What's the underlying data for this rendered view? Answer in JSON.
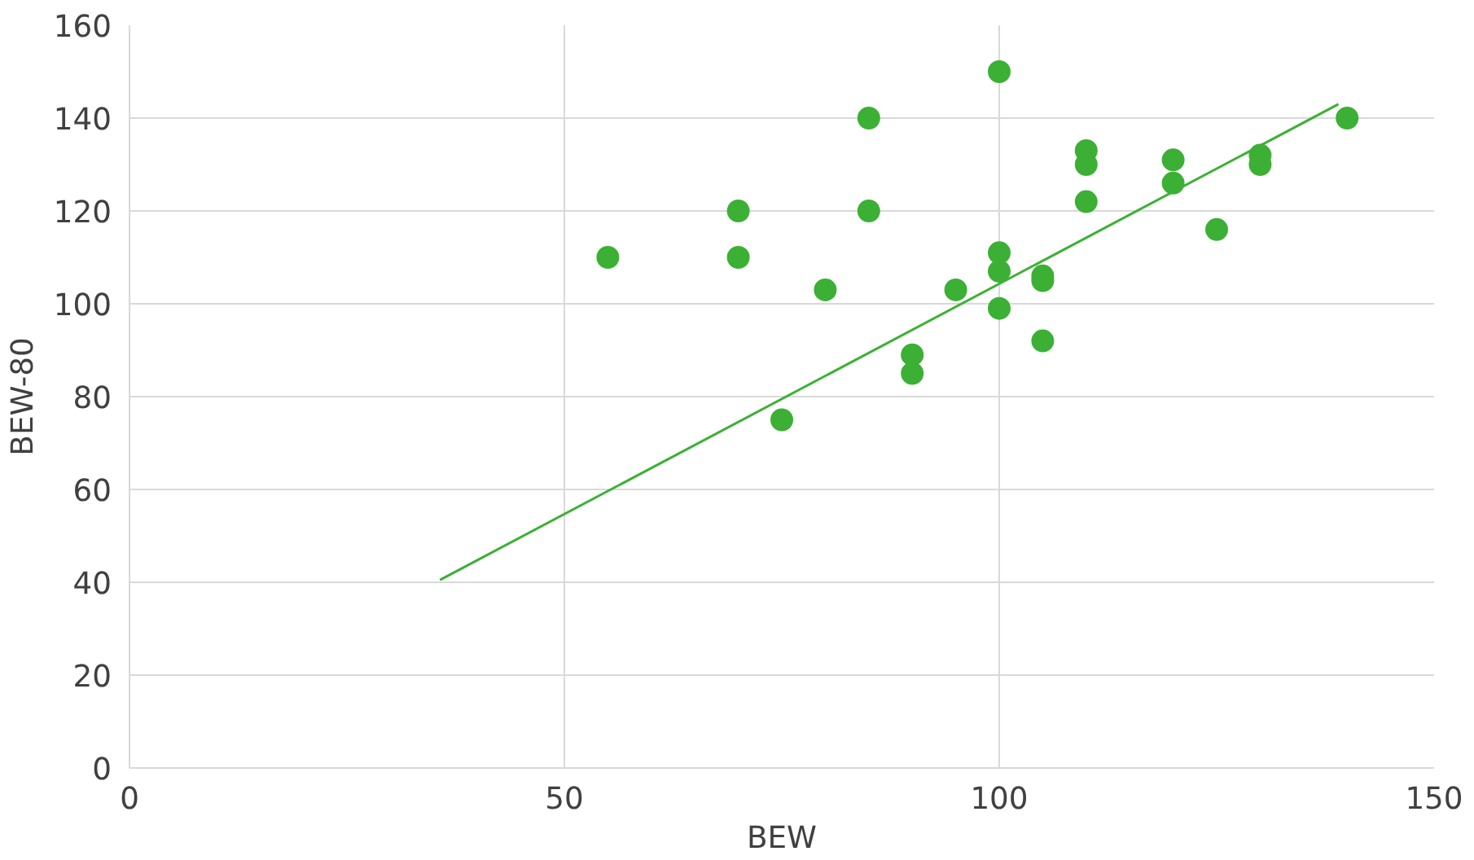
{
  "chart_data": {
    "type": "scatter",
    "xlabel": "BEW",
    "ylabel": "BEW-80",
    "xlim": [
      0,
      150
    ],
    "ylim": [
      0,
      160
    ],
    "xticks": [
      0,
      50,
      100,
      150
    ],
    "yticks": [
      0,
      20,
      40,
      60,
      80,
      100,
      120,
      140,
      160
    ],
    "grid": true,
    "series": [
      {
        "marker": "circle",
        "color": "#3cb034",
        "x": [
          55,
          70,
          70,
          75,
          80,
          85,
          85,
          90,
          90,
          95,
          100,
          100,
          100,
          100,
          105,
          105,
          105,
          110,
          110,
          110,
          120,
          120,
          125,
          130,
          130,
          140
        ],
        "values": [
          110,
          120,
          110,
          75,
          103,
          140,
          120,
          89,
          85,
          103,
          150,
          111,
          107,
          99,
          106,
          105,
          92,
          133,
          130,
          122,
          131,
          126,
          116,
          132,
          130,
          140
        ]
      },
      {
        "type": "line",
        "color": "#3cb034",
        "x": [
          35.7,
          139
        ],
        "values": [
          40.5,
          143
        ]
      }
    ]
  }
}
